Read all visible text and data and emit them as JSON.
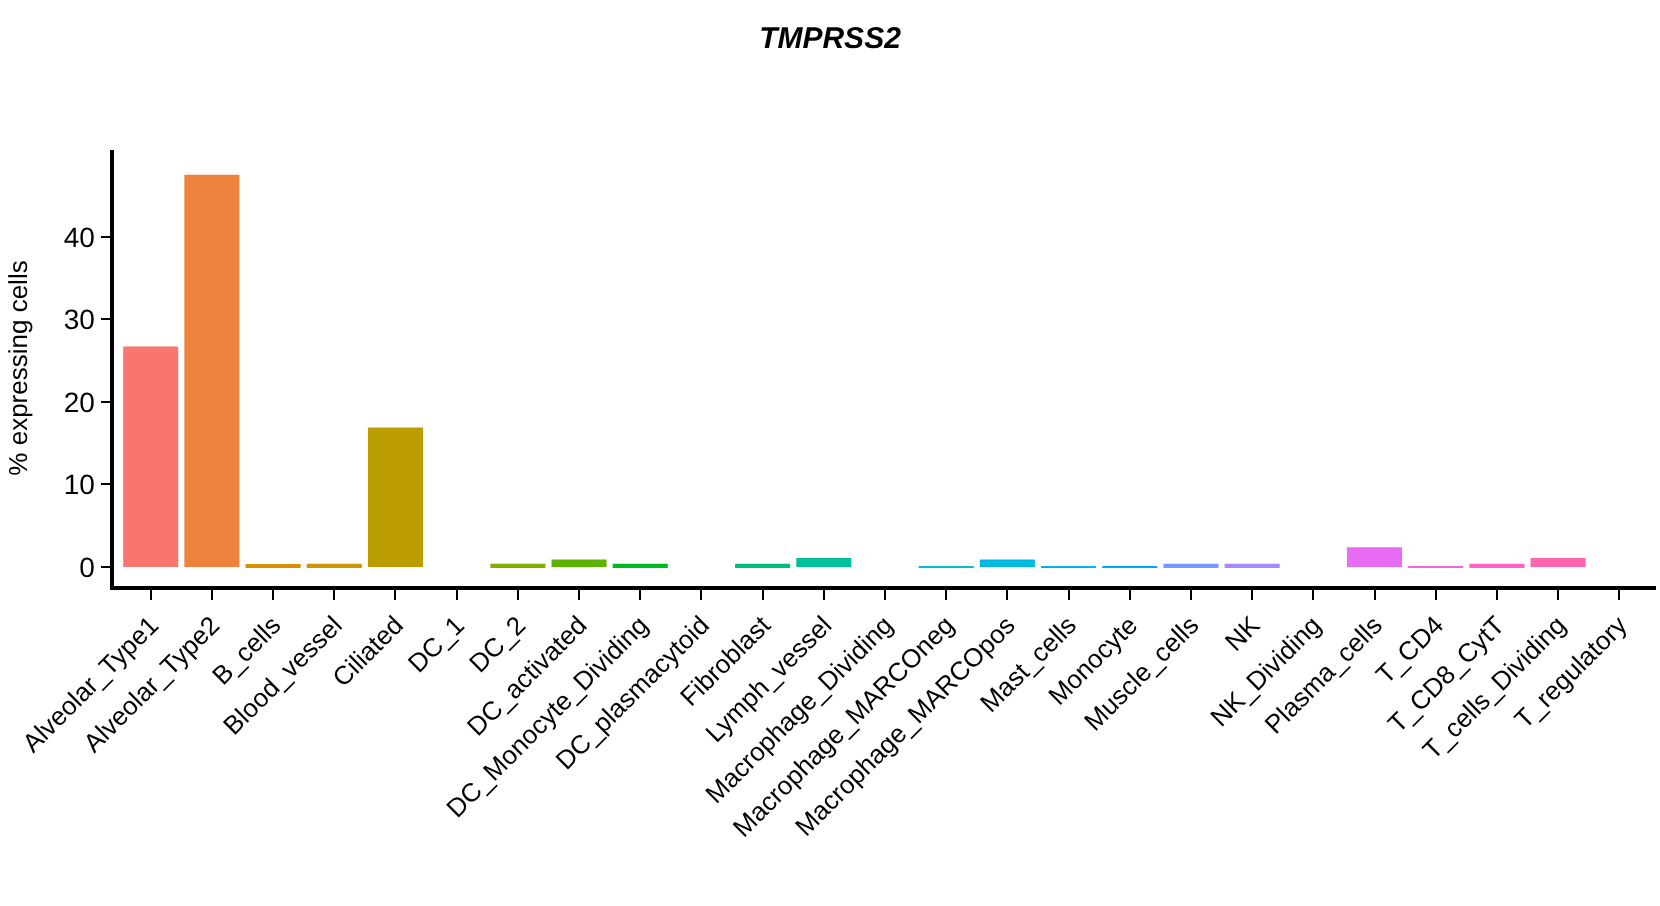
{
  "chart_data": {
    "type": "bar",
    "title": "TMPRSS2",
    "ylabel": "% expressing cells",
    "categories": [
      "Alveolar_Type1",
      "Alveolar_Type2",
      "B_cells",
      "Blood_vessel",
      "Ciliated",
      "DC_1",
      "DC_2",
      "DC_activated",
      "DC_Monocyte_Dividing",
      "DC_plasmacytoid",
      "Fibroblast",
      "Lymph_vessel",
      "Macrophage_Dividing",
      "Macrophage_MARCOneg",
      "Macrophage_MARCOpos",
      "Mast_cells",
      "Monocyte",
      "Muscle_cells",
      "NK",
      "NK_Dividing",
      "Plasma_cells",
      "T_CD4",
      "T_CD8_CytT",
      "T_cells_Dividing",
      "T_regulatory"
    ],
    "values": [
      26.7,
      47.5,
      0.2,
      0.4,
      16.9,
      0,
      0.4,
      0.9,
      0.4,
      0,
      0.4,
      1.1,
      0,
      0.1,
      0.9,
      0.1,
      0.1,
      0.4,
      0.4,
      0,
      2.4,
      0.1,
      0.4,
      1.1,
      0
    ],
    "colors": [
      "#F8766D",
      "#EC823C",
      "#DB8E00",
      "#D09400",
      "#BB9D00",
      "#A3A500",
      "#85AD00",
      "#5BB300",
      "#00B81F",
      "#00BC59",
      "#00BF7D",
      "#00C19C",
      "#00C1B7",
      "#00BECF",
      "#00B9E3",
      "#00B1F3",
      "#00A6FF",
      "#7997FF",
      "#A58AFF",
      "#C77CFF",
      "#E76BF3",
      "#F564E3",
      "#FF61C9",
      "#FF65AC",
      "#FF6C90"
    ],
    "ylim": [
      -2.3,
      50.5
    ],
    "yticks": [
      0,
      10,
      20,
      30,
      40
    ]
  }
}
